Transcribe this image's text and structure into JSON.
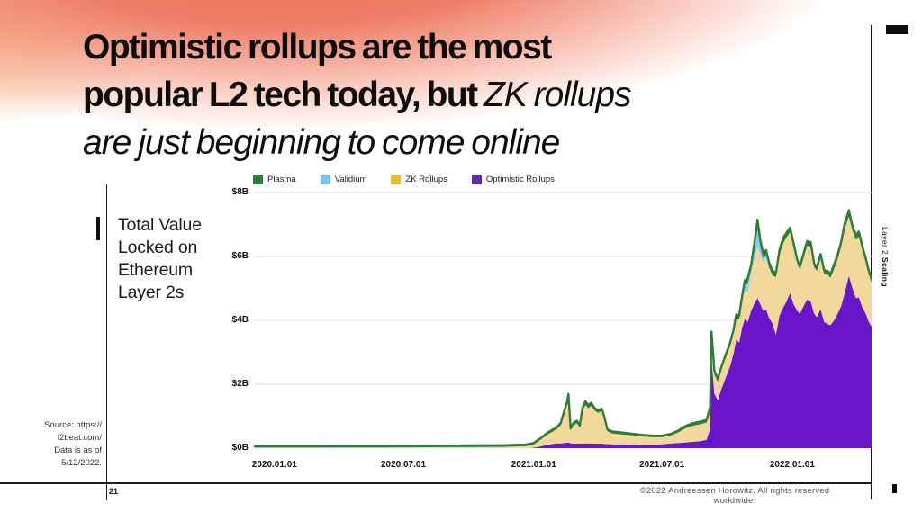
{
  "slide": {
    "title": {
      "line1_bold": "Optimistic rollups are the most",
      "line2_bold": "popular L2 tech today, but ",
      "line2_italic": "ZK rollups",
      "line3_italic": "are just beginning to come online"
    },
    "side_label": {
      "regular": "Layer 2 ",
      "bold": "Scaling"
    },
    "source_lines": [
      "Source: https://",
      "l2beat.com/",
      "Data is as of",
      "5/12/2022."
    ],
    "page_number": "21",
    "footer": "©2022 Andreessen Horowitz. All rights reserved worldwide."
  },
  "chart_data": {
    "type": "area",
    "stacked": true,
    "title_lines": [
      "Total Value",
      "Locked on",
      "Ethereum",
      "Layer 2s"
    ],
    "unit": "$B (USD billions)",
    "ylim": [
      0,
      8
    ],
    "grid": "horizontal",
    "legend_position": "top",
    "legend": [
      {
        "label": "Plasma",
        "color": "#2e7d3b"
      },
      {
        "label": "Validium",
        "color": "#7cc4ee"
      },
      {
        "label": "ZK Rollups",
        "color": "#e4bc3e"
      },
      {
        "label": "Optimistic Rollups",
        "color": "#5b2f9e"
      }
    ],
    "y_ticks": [
      {
        "label": "$0B",
        "value": 0
      },
      {
        "label": "$2B",
        "value": 2
      },
      {
        "label": "$4B",
        "value": 4
      },
      {
        "label": "$6B",
        "value": 6
      },
      {
        "label": "$8B",
        "value": 8
      }
    ],
    "x_ticks": [
      {
        "label": "2020.01.01",
        "date": "2020-01-01"
      },
      {
        "label": "2020.07.01",
        "date": "2020-07-01"
      },
      {
        "label": "2021.01.01",
        "date": "2021-01-01"
      },
      {
        "label": "2021.07.01",
        "date": "2021-07-01"
      },
      {
        "label": "2022.01.01",
        "date": "2022-01-01"
      }
    ],
    "x_domain": [
      "2019-12-03",
      "2022-04-23"
    ],
    "layer_names_bottom_to_top": [
      "Optimistic Rollups",
      "ZK Rollups",
      "Validium",
      "Plasma"
    ],
    "layer_fill_colors": [
      "#6a15c9",
      "#f2d99b",
      "#8ac8ef",
      "#2e7d3b"
    ],
    "top_line_color": "#2e7d36",
    "gridline_color": "#dcdcdc",
    "columns": [
      "date",
      "optimistic_rollups",
      "zk_rollups",
      "validium",
      "plasma"
    ],
    "rows": [
      [
        "2019-12-03",
        0,
        0.02,
        0,
        0.04
      ],
      [
        "2020-03-01",
        0,
        0.02,
        0,
        0.04
      ],
      [
        "2020-06-01",
        0,
        0.02,
        0,
        0.045
      ],
      [
        "2020-09-01",
        0,
        0.03,
        0,
        0.05
      ],
      [
        "2020-11-15",
        0,
        0.04,
        0,
        0.05
      ],
      [
        "2020-12-20",
        0,
        0.06,
        0,
        0.05
      ],
      [
        "2021-01-01",
        0.01,
        0.1,
        0,
        0.05
      ],
      [
        "2021-01-10",
        0.05,
        0.2,
        0,
        0.05
      ],
      [
        "2021-01-20",
        0.1,
        0.32,
        0,
        0.06
      ],
      [
        "2021-02-01",
        0.15,
        0.42,
        0,
        0.06
      ],
      [
        "2021-02-08",
        0.15,
        0.56,
        0,
        0.07
      ],
      [
        "2021-02-13",
        0.16,
        0.92,
        0,
        0.08
      ],
      [
        "2021-02-17",
        0.17,
        1.18,
        0,
        0.08
      ],
      [
        "2021-02-19",
        0.18,
        1.42,
        0,
        0.1
      ],
      [
        "2021-02-22",
        0.15,
        0.4,
        0,
        0.07
      ],
      [
        "2021-02-26",
        0.15,
        0.56,
        0,
        0.08
      ],
      [
        "2021-03-03",
        0.15,
        0.63,
        0,
        0.08
      ],
      [
        "2021-03-07",
        0.14,
        0.5,
        0,
        0.07
      ],
      [
        "2021-03-11",
        0.15,
        1.02,
        0,
        0.1
      ],
      [
        "2021-03-15",
        0.15,
        1.2,
        0,
        0.12
      ],
      [
        "2021-03-19",
        0.15,
        1.1,
        0,
        0.1
      ],
      [
        "2021-03-23",
        0.15,
        1.17,
        0,
        0.1
      ],
      [
        "2021-03-28",
        0.14,
        1.04,
        0,
        0.08
      ],
      [
        "2021-04-02",
        0.14,
        0.96,
        0,
        0.08
      ],
      [
        "2021-04-07",
        0.14,
        1.02,
        0,
        0.08
      ],
      [
        "2021-04-11",
        0.13,
        0.76,
        0,
        0.07
      ],
      [
        "2021-04-15",
        0.13,
        0.4,
        0,
        0.06
      ],
      [
        "2021-04-22",
        0.12,
        0.34,
        0,
        0.06
      ],
      [
        "2021-05-05",
        0.12,
        0.31,
        0,
        0.06
      ],
      [
        "2021-05-20",
        0.11,
        0.29,
        0,
        0.05
      ],
      [
        "2021-06-05",
        0.1,
        0.26,
        0,
        0.05
      ],
      [
        "2021-06-20",
        0.1,
        0.24,
        0,
        0.05
      ],
      [
        "2021-07-01",
        0.12,
        0.22,
        0,
        0.05
      ],
      [
        "2021-07-14",
        0.15,
        0.25,
        0,
        0.05
      ],
      [
        "2021-07-24",
        0.16,
        0.33,
        0,
        0.06
      ],
      [
        "2021-08-04",
        0.18,
        0.45,
        0,
        0.07
      ],
      [
        "2021-08-14",
        0.2,
        0.5,
        0,
        0.08
      ],
      [
        "2021-08-24",
        0.22,
        0.53,
        0,
        0.08
      ],
      [
        "2021-09-02",
        0.26,
        0.54,
        0,
        0.08
      ],
      [
        "2021-09-07",
        0.6,
        0.58,
        0,
        0.1
      ],
      [
        "2021-09-09",
        2.8,
        0.7,
        0,
        0.15
      ],
      [
        "2021-09-13",
        1.7,
        0.6,
        0,
        0.12
      ],
      [
        "2021-09-18",
        1.5,
        0.58,
        0,
        0.1
      ],
      [
        "2021-09-23",
        1.85,
        0.6,
        0,
        0.1
      ],
      [
        "2021-09-29",
        2.2,
        0.62,
        0,
        0.1
      ],
      [
        "2021-10-05",
        2.55,
        0.63,
        0,
        0.1
      ],
      [
        "2021-10-10",
        2.95,
        0.65,
        0,
        0.1
      ],
      [
        "2021-10-14",
        3.4,
        0.67,
        0,
        0.12
      ],
      [
        "2021-10-18",
        3.3,
        0.72,
        0,
        0.12
      ],
      [
        "2021-10-22",
        3.75,
        0.8,
        0.05,
        0.13
      ],
      [
        "2021-10-26",
        4.05,
        0.85,
        0.2,
        0.15
      ],
      [
        "2021-10-30",
        3.95,
        0.95,
        0.25,
        0.15
      ],
      [
        "2021-11-04",
        4.3,
        1.15,
        0.15,
        0.15
      ],
      [
        "2021-11-09",
        4.55,
        1.45,
        0.3,
        0.2
      ],
      [
        "2021-11-13",
        4.7,
        1.6,
        0.55,
        0.3
      ],
      [
        "2021-11-17",
        4.5,
        1.55,
        0.25,
        0.2
      ],
      [
        "2021-11-21",
        4.3,
        1.52,
        0.12,
        0.16
      ],
      [
        "2021-11-25",
        4.35,
        1.62,
        0.08,
        0.15
      ],
      [
        "2021-11-29",
        4.1,
        1.55,
        0.03,
        0.15
      ],
      [
        "2021-12-04",
        3.9,
        1.5,
        0,
        0.15
      ],
      [
        "2021-12-09",
        3.55,
        1.8,
        0,
        0.15
      ],
      [
        "2021-12-14",
        4.15,
        1.9,
        0,
        0.15
      ],
      [
        "2021-12-19",
        4.4,
        2.0,
        0,
        0.18
      ],
      [
        "2021-12-24",
        4.6,
        2.0,
        0,
        0.15
      ],
      [
        "2021-12-29",
        4.85,
        1.9,
        0,
        0.15
      ],
      [
        "2022-01-03",
        4.5,
        1.75,
        0,
        0.15
      ],
      [
        "2022-01-08",
        4.3,
        1.48,
        0,
        0.12
      ],
      [
        "2022-01-12",
        4.2,
        1.38,
        0,
        0.12
      ],
      [
        "2022-01-17",
        4.45,
        1.5,
        0,
        0.15
      ],
      [
        "2022-01-22",
        4.65,
        1.68,
        0,
        0.15
      ],
      [
        "2022-01-27",
        4.6,
        1.7,
        0,
        0.15
      ],
      [
        "2022-02-01",
        4.2,
        1.45,
        0,
        0.12
      ],
      [
        "2022-02-05",
        4.1,
        1.45,
        0,
        0.12
      ],
      [
        "2022-02-10",
        4.35,
        1.58,
        0,
        0.15
      ],
      [
        "2022-02-15",
        3.95,
        1.5,
        0,
        0.12
      ],
      [
        "2022-02-20",
        3.88,
        1.55,
        0,
        0.12
      ],
      [
        "2022-02-24",
        3.85,
        1.48,
        0,
        0.12
      ],
      [
        "2022-03-01",
        4.0,
        1.6,
        0,
        0.15
      ],
      [
        "2022-03-06",
        4.2,
        1.7,
        0,
        0.15
      ],
      [
        "2022-03-11",
        4.45,
        1.85,
        0,
        0.15
      ],
      [
        "2022-03-16",
        4.85,
        2.0,
        0,
        0.18
      ],
      [
        "2022-03-22",
        5.4,
        1.85,
        0,
        0.2
      ],
      [
        "2022-03-27",
        5.0,
        1.8,
        0,
        0.15
      ],
      [
        "2022-04-01",
        4.7,
        1.82,
        0,
        0.15
      ],
      [
        "2022-04-05",
        4.72,
        1.9,
        0,
        0.16
      ],
      [
        "2022-04-10",
        4.4,
        1.78,
        0,
        0.14
      ],
      [
        "2022-04-15",
        4.2,
        1.6,
        0,
        0.12
      ],
      [
        "2022-04-19",
        3.95,
        1.48,
        0,
        0.12
      ],
      [
        "2022-04-23",
        3.8,
        1.4,
        0,
        0.1
      ]
    ]
  }
}
